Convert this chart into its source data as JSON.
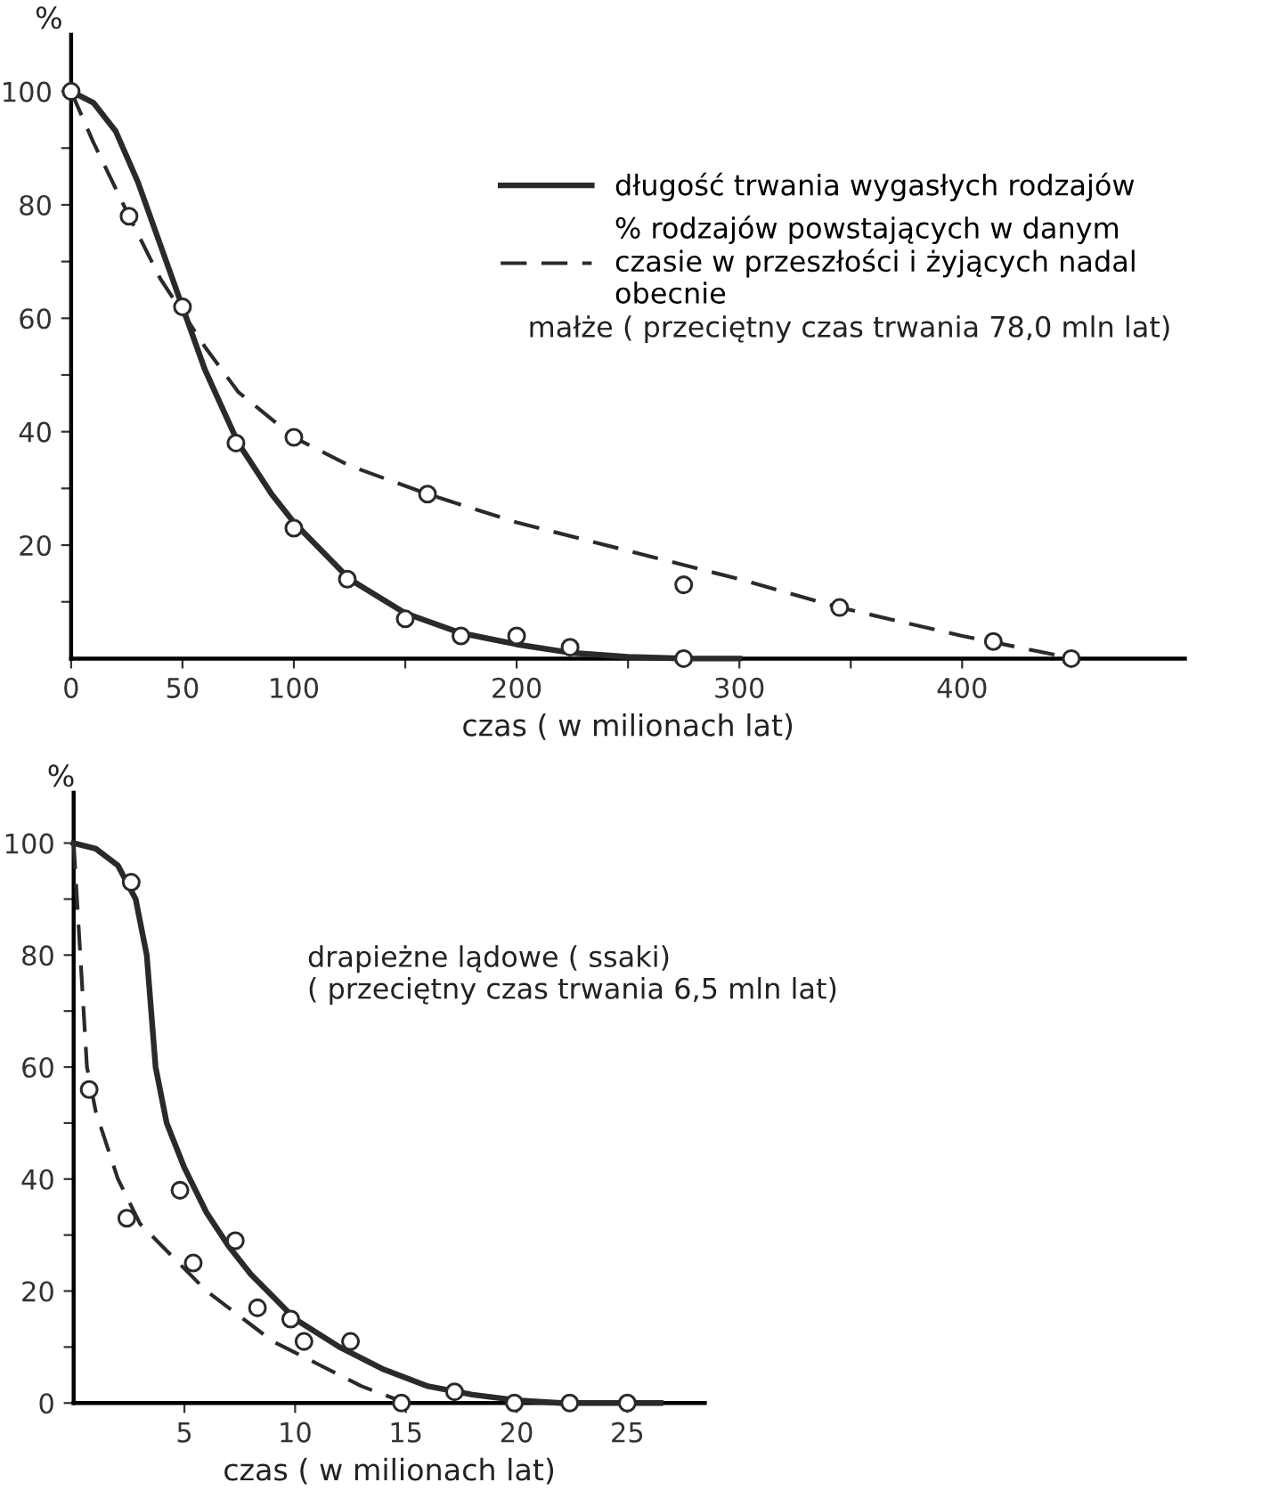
{
  "chart_data": [
    {
      "type": "line",
      "xlabel": "czas ( w milionach lat)",
      "ylabel": "%",
      "xlim": [
        0,
        500
      ],
      "ylim": [
        0,
        110
      ],
      "xticks": [
        0,
        50,
        100,
        {
          "value": 150,
          "label": null
        },
        200,
        {
          "value": 250,
          "label": null
        },
        300,
        {
          "value": 350,
          "label": null
        },
        400
      ],
      "yticks": [
        {
          "value": 10,
          "label": null
        },
        20,
        {
          "value": 30,
          "label": null
        },
        40,
        {
          "value": 50,
          "label": null
        },
        60,
        {
          "value": 70,
          "label": null
        },
        80,
        {
          "value": 90,
          "label": null
        },
        100
      ],
      "legend": "top right",
      "grid": false,
      "annotations": [
        "małże ( przeciętny czas trwania 78,0 mln lat)"
      ],
      "series": [
        {
          "name": "długość trwania wygasłych rodzajów",
          "color": "#2a2a2a",
          "line_style": "solid",
          "x": [
            0,
            10,
            20,
            30,
            40,
            50,
            60,
            75,
            90,
            100,
            125,
            150,
            175,
            200,
            225,
            250,
            275,
            300
          ],
          "values": [
            100,
            98,
            93,
            84,
            73,
            62,
            51,
            38,
            29,
            24,
            14,
            8,
            4.5,
            2.5,
            1,
            0.3,
            0,
            0
          ]
        },
        {
          "name": "% rodzajów powstających w danym\nczasie w przeszłości i żyjących nadal\nobecnie",
          "color": "#2a2a2a",
          "line_style": "dashed",
          "x": [
            0,
            10,
            26,
            40,
            50,
            60,
            75,
            100,
            125,
            160,
            200,
            250,
            300,
            345,
            400,
            450
          ],
          "values": [
            100,
            91,
            78,
            67,
            61,
            55,
            47,
            39,
            34,
            29,
            24,
            19,
            14,
            9,
            4,
            0
          ]
        },
        {
          "type": "scatter",
          "marker": "circle",
          "color": "#2a2a2a",
          "x": [
            0,
            26,
            50,
            74,
            100,
            100,
            124,
            150,
            160,
            175,
            200,
            224,
            275,
            275,
            345,
            414,
            449
          ],
          "values": [
            100,
            78,
            62,
            38,
            39,
            23,
            14,
            7,
            29,
            4,
            4,
            2,
            0,
            13,
            9,
            3,
            0
          ]
        }
      ]
    },
    {
      "type": "line",
      "xlabel": "czas ( w milionach lat)",
      "ylabel": "%",
      "xlim": [
        0,
        28.5
      ],
      "ylim": [
        0,
        109
      ],
      "xticks": [
        5,
        10,
        15,
        20,
        25
      ],
      "yticks": [
        0,
        {
          "value": 10,
          "label": null
        },
        20,
        {
          "value": 30,
          "label": null
        },
        40,
        {
          "value": 50,
          "label": null
        },
        60,
        {
          "value": 70,
          "label": null
        },
        80,
        {
          "value": 90,
          "label": null
        },
        100
      ],
      "grid": false,
      "annotations": [
        "drapieżne lądowe ( ssaki)\n( przeciętny czas trwania 6,5 mln lat)"
      ],
      "series": [
        {
          "color": "#2a2a2a",
          "line_style": "solid",
          "x": [
            0,
            1,
            2,
            2.8,
            3.3,
            3.5,
            3.7,
            4.2,
            5,
            6,
            7,
            8,
            9,
            10,
            12,
            14,
            16,
            18,
            20,
            22,
            25,
            26.5
          ],
          "values": [
            100,
            99,
            96,
            90,
            80,
            70,
            60,
            50,
            42,
            34,
            28,
            23,
            19,
            15,
            10,
            6,
            3,
            1.5,
            0.5,
            0,
            0,
            0
          ]
        },
        {
          "color": "#2a2a2a",
          "line_style": "dashed",
          "x": [
            0,
            0.3,
            0.6,
            1,
            2,
            3,
            4,
            5,
            6,
            7,
            8,
            9,
            10,
            11,
            12,
            13,
            14,
            15
          ],
          "values": [
            100,
            80,
            60,
            52,
            40,
            32,
            28,
            24,
            20,
            17,
            14,
            11,
            9,
            7,
            5,
            3,
            1.5,
            0
          ]
        },
        {
          "type": "scatter",
          "marker": "circle",
          "color": "#2a2a2a",
          "x": [
            0.7,
            2.4,
            2.6,
            4.8,
            5.4,
            7.3,
            8.3,
            9.8,
            10.4,
            12.5,
            14.8,
            17.2,
            19.9,
            22.4,
            25
          ],
          "values": [
            56,
            33,
            93,
            38,
            25,
            29,
            17,
            15,
            11,
            11,
            0,
            2,
            0,
            0,
            0
          ]
        }
      ]
    }
  ]
}
